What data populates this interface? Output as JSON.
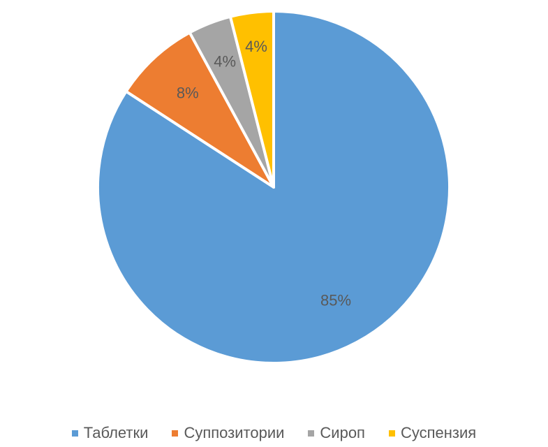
{
  "chart_data": {
    "type": "pie",
    "title": "",
    "legend_position": "bottom",
    "start_angle_deg": 0,
    "direction": "clockwise",
    "slices": [
      {
        "name": "Таблетки",
        "value": 85,
        "label": "85%",
        "color": "#5b9bd5"
      },
      {
        "name": "Суппозитории",
        "value": 8,
        "label": "8%",
        "color": "#ed7d31"
      },
      {
        "name": "Сироп",
        "value": 4,
        "label": "4%",
        "color": "#a5a5a5"
      },
      {
        "name": "Суспензия",
        "value": 4,
        "label": "4%",
        "color": "#ffc000"
      }
    ]
  }
}
